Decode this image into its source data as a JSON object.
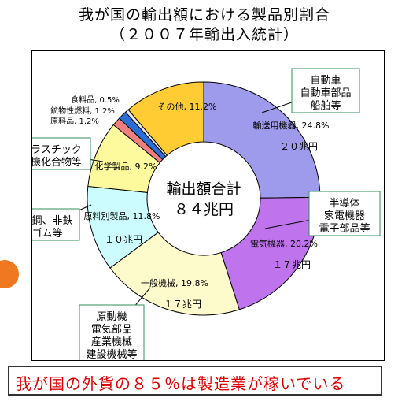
{
  "title": "我が国の輸出額における製品別割合",
  "subtitle": "（２００７年輸出入統計）",
  "chart_data": {
    "type": "donut",
    "center_label": [
      "輸出額合計",
      "８４兆円"
    ],
    "slices": [
      {
        "label": "輸送用機器,",
        "pct": "24.8%",
        "value": 24.8,
        "amount": "２０兆円",
        "color": "#9e9bec",
        "callout": [
          "自動車",
          "自動車部品",
          "船舶等"
        ]
      },
      {
        "label": "電気機器,",
        "pct": "20.2%",
        "value": 20.2,
        "amount": "１７兆円",
        "color": "#bf73ec",
        "callout": [
          "半導体",
          "家電機器",
          "電子部品等"
        ]
      },
      {
        "label": "一般機械,",
        "pct": "19.8%",
        "value": 19.8,
        "amount": "１７兆円",
        "color": "#fdfacc",
        "callout": [
          "原動機",
          "電気部品",
          "産業機械",
          "建設機械等"
        ]
      },
      {
        "label": "原料別製品,",
        "pct": "11.8%",
        "value": 11.8,
        "amount": "１０兆円",
        "color": "#ccfcfd",
        "callout": [
          "鉄鋼、非鉄",
          "ゴム等"
        ]
      },
      {
        "label": "化学製品,",
        "pct": "9.2%",
        "value": 9.2,
        "amount": "",
        "color": "#fdfa9e",
        "callout": [
          "プラスチック",
          "有機化合物等"
        ]
      },
      {
        "label": "原料品,",
        "pct": "1.2%",
        "value": 1.2,
        "amount": "",
        "color": "#f08080",
        "callout": []
      },
      {
        "label": "鉱物性燃料,",
        "pct": "1.2%",
        "value": 1.2,
        "amount": "",
        "color": "#2a6fd8",
        "callout": []
      },
      {
        "label": "食料品,",
        "pct": "0.5%",
        "value": 0.5,
        "amount": "",
        "color": "#e8e8e8",
        "callout": []
      },
      {
        "label": "その他,",
        "pct": "11.2%",
        "value": 11.2,
        "amount": "",
        "color": "#ffcc33",
        "callout": []
      }
    ]
  },
  "caption": "我が国の外貨の８５％は製造業が稼いでいる"
}
